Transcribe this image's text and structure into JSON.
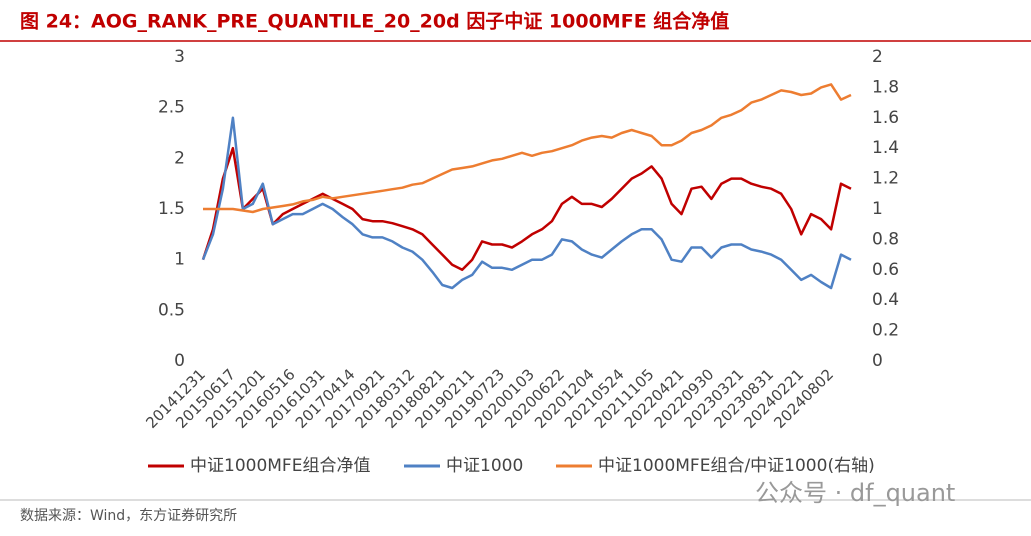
{
  "chart_data": {
    "type": "line",
    "title": "图 24：AOG_RANK_PRE_QUANTILE_20_20d 因子中证 1000MFE 组合净值",
    "source": "数据来源：Wind，东方证券研究所",
    "watermark": "公众号 · df_quant",
    "categories": [
      "20141231",
      null,
      null,
      "20150617",
      null,
      null,
      "20151201",
      null,
      null,
      "20160516",
      null,
      null,
      "20161031",
      null,
      null,
      "20170414",
      null,
      null,
      "20170921",
      null,
      null,
      "20180312",
      null,
      null,
      "20180821",
      null,
      null,
      "20190211",
      null,
      null,
      "20190723",
      null,
      null,
      "20200103",
      null,
      null,
      "20200622",
      null,
      null,
      "20201204",
      null,
      null,
      "20210524",
      null,
      null,
      "20211105",
      null,
      null,
      "20220421",
      null,
      null,
      "20220930",
      null,
      null,
      "20230321",
      null,
      null,
      "20230831",
      null,
      null,
      "20240221",
      null,
      null,
      "20240802",
      null,
      null
    ],
    "series": [
      {
        "name": "中证1000MFE组合净值",
        "color": "#c00000",
        "values": [
          1.0,
          1.3,
          1.8,
          2.1,
          1.5,
          1.6,
          1.7,
          1.35,
          1.45,
          1.5,
          1.55,
          1.6,
          1.65,
          1.6,
          1.55,
          1.5,
          1.4,
          1.38,
          1.38,
          1.36,
          1.33,
          1.3,
          1.25,
          1.15,
          1.05,
          0.95,
          0.9,
          1.0,
          1.18,
          1.15,
          1.15,
          1.12,
          1.18,
          1.25,
          1.3,
          1.38,
          1.55,
          1.62,
          1.55,
          1.55,
          1.52,
          1.6,
          1.7,
          1.8,
          1.85,
          1.92,
          1.8,
          1.55,
          1.45,
          1.7,
          1.72,
          1.6,
          1.75,
          1.8,
          1.8,
          1.75,
          1.72,
          1.7,
          1.65,
          1.5,
          1.25,
          1.45,
          1.4,
          1.3,
          1.75,
          1.7
        ]
      },
      {
        "name": "中证1000",
        "color": "#4f81c4",
        "values": [
          1.0,
          1.25,
          1.7,
          2.4,
          1.5,
          1.55,
          1.75,
          1.35,
          1.4,
          1.45,
          1.45,
          1.5,
          1.55,
          1.5,
          1.42,
          1.35,
          1.25,
          1.22,
          1.22,
          1.18,
          1.12,
          1.08,
          1.0,
          0.88,
          0.75,
          0.72,
          0.8,
          0.85,
          0.98,
          0.92,
          0.92,
          0.9,
          0.95,
          1.0,
          1.0,
          1.05,
          1.2,
          1.18,
          1.1,
          1.05,
          1.02,
          1.1,
          1.18,
          1.25,
          1.3,
          1.3,
          1.2,
          1.0,
          0.98,
          1.12,
          1.12,
          1.02,
          1.12,
          1.15,
          1.15,
          1.1,
          1.08,
          1.05,
          1.0,
          0.9,
          0.8,
          0.85,
          0.78,
          0.72,
          1.05,
          1.0
        ]
      },
      {
        "name": "中证1000MFE组合/中证1000(右轴)",
        "color": "#ed7d31",
        "axis": "y2",
        "values": [
          1.0,
          1.0,
          1.0,
          1.0,
          0.99,
          0.98,
          1.0,
          1.01,
          1.02,
          1.03,
          1.05,
          1.06,
          1.08,
          1.07,
          1.08,
          1.09,
          1.1,
          1.11,
          1.12,
          1.13,
          1.14,
          1.16,
          1.17,
          1.2,
          1.23,
          1.26,
          1.27,
          1.28,
          1.3,
          1.32,
          1.33,
          1.35,
          1.37,
          1.35,
          1.37,
          1.38,
          1.4,
          1.42,
          1.45,
          1.47,
          1.48,
          1.47,
          1.5,
          1.52,
          1.5,
          1.48,
          1.42,
          1.42,
          1.45,
          1.5,
          1.52,
          1.55,
          1.6,
          1.62,
          1.65,
          1.7,
          1.72,
          1.75,
          1.78,
          1.77,
          1.75,
          1.76,
          1.8,
          1.82,
          1.72,
          1.75
        ]
      }
    ],
    "ylim": [
      0,
      3
    ],
    "yticks": [
      0,
      0.5,
      1,
      1.5,
      2,
      2.5,
      3
    ],
    "y2lim": [
      0,
      2
    ],
    "y2ticks": [
      0,
      0.2,
      0.4,
      0.6,
      0.8,
      1,
      1.2,
      1.4,
      1.6,
      1.8,
      2
    ],
    "legend": "bottom"
  }
}
